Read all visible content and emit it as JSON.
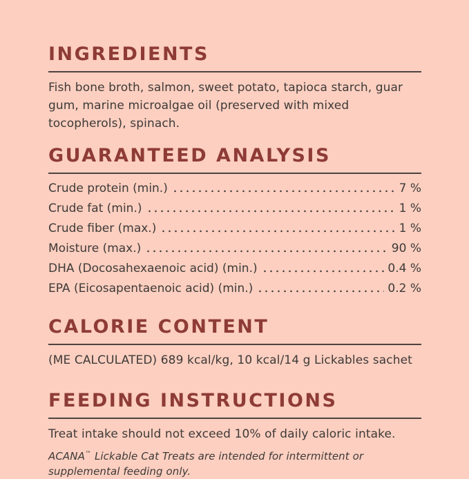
{
  "page": {
    "background_color": "#fccfc0",
    "heading_color": "#8e3b36",
    "text_color": "#3e3a38",
    "rule_color": "#4d423f"
  },
  "sections": {
    "ingredients": {
      "title": "INGREDIENTS",
      "body": "Fish bone broth, salmon, sweet potato, tapioca starch, guar gum, marine microalgae oil (preserved with mixed tocopherols), spinach."
    },
    "guaranteed_analysis": {
      "title": "GUARANTEED ANALYSIS",
      "rows": [
        {
          "label": "Crude protein (min.)",
          "value": "7 %"
        },
        {
          "label": "Crude fat (min.)",
          "value": "1 %"
        },
        {
          "label": "Crude fiber (max.)",
          "value": "1 %"
        },
        {
          "label": "Moisture (max.)",
          "value": "90 %"
        },
        {
          "label": "DHA (Docosahexaenoic acid) (min.)",
          "value": "0.4 %"
        },
        {
          "label": "EPA (Eicosapentaenoic acid) (min.)",
          "value": "0.2 %"
        }
      ]
    },
    "calorie_content": {
      "title": "CALORIE CONTENT",
      "body": "(ME CALCULATED) 689 kcal/kg, 10 kcal/14 g Lickables sachet"
    },
    "feeding_instructions": {
      "title": "FEEDING INSTRUCTIONS",
      "body": "Treat intake should not exceed 10% of daily caloric intake.",
      "footnote_brand": "ACANA",
      "footnote_tm": "™",
      "footnote_rest": " Lickable Cat Treats are intended for intermittent or supplemental feeding only."
    }
  }
}
